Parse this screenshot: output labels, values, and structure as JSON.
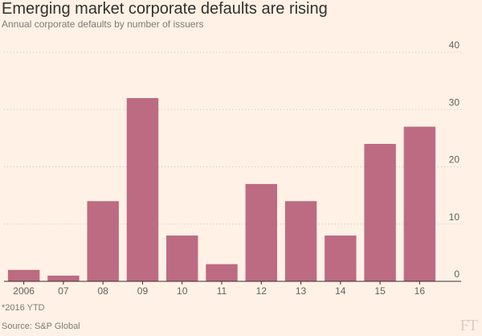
{
  "title": "Emerging market corporate defaults are rising",
  "subtitle": "Annual corporate defaults by number of issuers",
  "footnote": "*2016 YTD",
  "source": "Source: S&P Global",
  "logo": "FT",
  "colors": {
    "bar": "#bd6b82",
    "grid": "#cec6b9",
    "axis": "#33302e",
    "tick_text": "#66605c",
    "background": "#fff1e5"
  },
  "chart_data": {
    "type": "bar",
    "title": "Emerging market corporate defaults are rising",
    "subtitle": "Annual corporate defaults by number of issuers",
    "categories": [
      "2006",
      "07",
      "08",
      "09",
      "10",
      "11",
      "12",
      "13",
      "14",
      "15",
      "16"
    ],
    "values": [
      2,
      1,
      14,
      32,
      8,
      3,
      17,
      14,
      8,
      24,
      27
    ],
    "ylim": [
      0,
      40
    ],
    "yticks": [
      0,
      10,
      20,
      30,
      40
    ],
    "y_axis_position": "right",
    "grid": true,
    "xlabel": "",
    "ylabel": ""
  }
}
